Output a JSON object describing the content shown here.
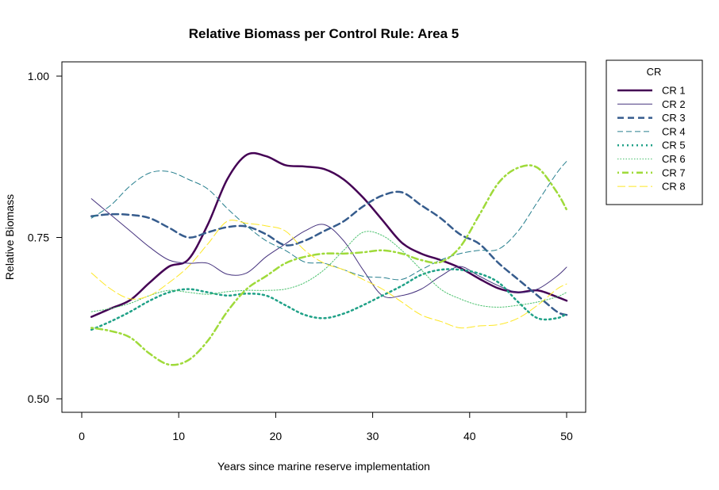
{
  "chart_data": {
    "type": "line",
    "title": "Relative Biomass per Control Rule: Area 5",
    "xlabel": "Years since marine reserve implementation",
    "ylabel": "Relative Biomass",
    "xlim": [
      0,
      50
    ],
    "ylim": [
      0.5,
      1.0
    ],
    "x_ticks": [
      0,
      10,
      20,
      30,
      40,
      50
    ],
    "y_ticks": [
      0.5,
      0.75,
      1.0
    ],
    "x_tick_labels": [
      "0",
      "10",
      "20",
      "30",
      "40",
      "50"
    ],
    "y_tick_labels": [
      "0.50",
      "0.75",
      "1.00"
    ],
    "grid": false,
    "legend": {
      "title": "CR",
      "placement": "right-outside"
    },
    "x": [
      1,
      3,
      5,
      7,
      9,
      11,
      13,
      15,
      17,
      19,
      21,
      23,
      25,
      27,
      29,
      31,
      33,
      35,
      37,
      39,
      41,
      43,
      45,
      47,
      49,
      50
    ],
    "series": [
      {
        "name": "CR 1",
        "color": "#440154",
        "style": "solid-thick",
        "values": [
          0.627,
          0.64,
          0.653,
          0.68,
          0.705,
          0.716,
          0.77,
          0.84,
          0.878,
          0.876,
          0.862,
          0.86,
          0.856,
          0.84,
          0.812,
          0.777,
          0.742,
          0.725,
          0.715,
          0.703,
          0.686,
          0.671,
          0.665,
          0.668,
          0.658,
          0.652
        ]
      },
      {
        "name": "CR 2",
        "color": "#46337E",
        "style": "solid-thin",
        "values": [
          0.81,
          0.785,
          0.76,
          0.735,
          0.715,
          0.71,
          0.71,
          0.693,
          0.695,
          0.72,
          0.74,
          0.76,
          0.77,
          0.745,
          0.7,
          0.66,
          0.66,
          0.67,
          0.69,
          0.705,
          0.69,
          0.675,
          0.665,
          0.67,
          0.69,
          0.704
        ]
      },
      {
        "name": "CR 3",
        "color": "#365C8D",
        "style": "dashed-thick",
        "values": [
          0.783,
          0.786,
          0.785,
          0.78,
          0.765,
          0.75,
          0.758,
          0.766,
          0.767,
          0.755,
          0.738,
          0.745,
          0.76,
          0.775,
          0.798,
          0.815,
          0.82,
          0.8,
          0.78,
          0.755,
          0.74,
          0.71,
          0.685,
          0.66,
          0.635,
          0.63
        ]
      },
      {
        "name": "CR 4",
        "color": "#277F8E",
        "style": "dashed-thin",
        "values": [
          0.78,
          0.8,
          0.83,
          0.85,
          0.852,
          0.84,
          0.825,
          0.795,
          0.768,
          0.745,
          0.73,
          0.712,
          0.71,
          0.7,
          0.69,
          0.688,
          0.685,
          0.7,
          0.715,
          0.725,
          0.73,
          0.732,
          0.76,
          0.805,
          0.85,
          0.868
        ]
      },
      {
        "name": "CR 5",
        "color": "#1FA187",
        "style": "dotted-thick",
        "values": [
          0.607,
          0.62,
          0.635,
          0.652,
          0.665,
          0.67,
          0.665,
          0.66,
          0.663,
          0.66,
          0.645,
          0.63,
          0.625,
          0.632,
          0.645,
          0.66,
          0.675,
          0.692,
          0.7,
          0.7,
          0.694,
          0.68,
          0.65,
          0.625,
          0.625,
          0.632
        ]
      },
      {
        "name": "CR 6",
        "color": "#4AC16D",
        "style": "dotted-thin",
        "values": [
          0.635,
          0.64,
          0.648,
          0.66,
          0.668,
          0.665,
          0.662,
          0.666,
          0.668,
          0.668,
          0.67,
          0.68,
          0.7,
          0.73,
          0.758,
          0.753,
          0.73,
          0.7,
          0.67,
          0.655,
          0.645,
          0.642,
          0.645,
          0.65,
          0.658,
          0.665
        ]
      },
      {
        "name": "CR 7",
        "color": "#9FDA3A",
        "style": "dashdot-thick",
        "values": [
          0.61,
          0.605,
          0.595,
          0.57,
          0.553,
          0.56,
          0.59,
          0.635,
          0.67,
          0.69,
          0.71,
          0.72,
          0.725,
          0.725,
          0.727,
          0.73,
          0.725,
          0.715,
          0.712,
          0.735,
          0.785,
          0.835,
          0.858,
          0.858,
          0.82,
          0.793
        ]
      },
      {
        "name": "CR 8",
        "color": "#FDE725",
        "style": "longdash-thin",
        "values": [
          0.695,
          0.67,
          0.655,
          0.66,
          0.68,
          0.705,
          0.74,
          0.775,
          0.772,
          0.768,
          0.76,
          0.73,
          0.71,
          0.7,
          0.685,
          0.67,
          0.65,
          0.63,
          0.62,
          0.61,
          0.613,
          0.615,
          0.625,
          0.645,
          0.67,
          0.678
        ]
      }
    ]
  }
}
